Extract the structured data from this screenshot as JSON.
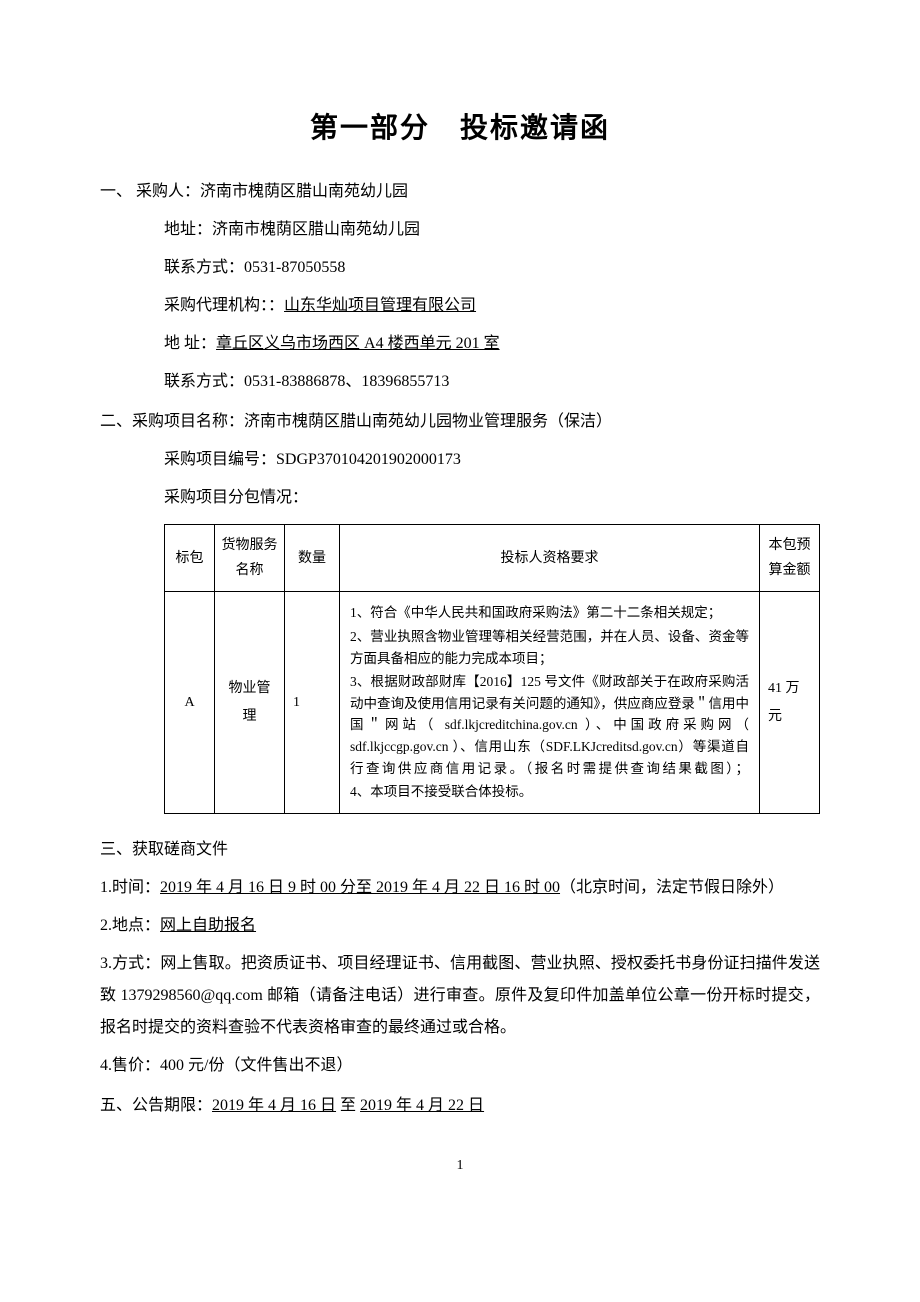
{
  "title": "第一部分　投标邀请函",
  "section1": {
    "label": "一、 采购人：",
    "purchaser": "济南市槐荫区腊山南苑幼儿园",
    "addr_label": "地址：",
    "addr": "济南市槐荫区腊山南苑幼儿园",
    "contact_label": "联系方式：",
    "contact": "0531-87050558",
    "agent_label": "采购代理机构：：",
    "agent": "山东华灿项目管理有限公司",
    "agent_addr_label": "地 址：",
    "agent_addr": "章丘区义乌市场西区 A4 楼西单元 201 室",
    "agent_contact_label": "联系方式：",
    "agent_contact": "0531-83886878、18396855713"
  },
  "section2": {
    "label": "二、采购项目名称：",
    "project_name": "济南市槐荫区腊山南苑幼儿园物业管理服务（保洁）",
    "project_no_label": "采购项目编号：",
    "project_no": "SDGP370104201902000173",
    "pkg_label": "采购项目分包情况："
  },
  "table": {
    "headers": {
      "pkg": "标包",
      "name": "货物服务名称",
      "qty": "数量",
      "req": "投标人资格要求",
      "budget": "本包预算金额"
    },
    "row": {
      "pkg": "A",
      "name": "物业管理",
      "qty": "1",
      "req1": "1、符合《中华人民共和国政府采购法》第二十二条相关规定；",
      "req2": "2、营业执照含物业管理等相关经营范围，并在人员、设备、资金等方面具备相应的能力完成本项目；",
      "req3": "3、根据财政部财库【2016】125 号文件《财政部关于在政府采购活动中查询及使用信用记录有关问题的通知》，供应商应登录＂信用中国＂网站（ sdf.lkjcreditchina.gov.cn ）、中国政府采购网（ sdf.lkjccgp.gov.cn ）、信用山东（SDF.LKJcreditsd.gov.cn）等渠道自行查询供应商信用记录。（报名时需提供查询结果截图）；",
      "req4": "4、本项目不接受联合体投标。",
      "budget": "41 万元"
    }
  },
  "section3": {
    "label": "三、获取磋商文件",
    "time_label": "1.时间：",
    "time_text": "2019 年 4 月 16 日 9 时 00 分至 2019 年 4 月 22 日 16 时 00",
    "time_suffix": "（北京时间，法定节假日除外）",
    "loc_label": "2.地点：",
    "loc": "网上自助报名",
    "method_label": "3.方式：",
    "method": "网上售取。把资质证书、项目经理证书、信用截图、营业执照、授权委托书身份证扫描件发送致 1379298560@qq.com 邮箱（请备注电话）进行审查。原件及复印件加盖单位公章一份开标时提交，报名时提交的资料查验不代表资格审查的最终通过或合格。",
    "price_label": "4.售价：",
    "price": "400 元/份（文件售出不退）"
  },
  "section5": {
    "label": "五、公告期限：",
    "from": "2019 年 4 月 16 日",
    "mid": " 至 ",
    "to": "2019 年 4 月 22 日"
  },
  "page_no": "1"
}
